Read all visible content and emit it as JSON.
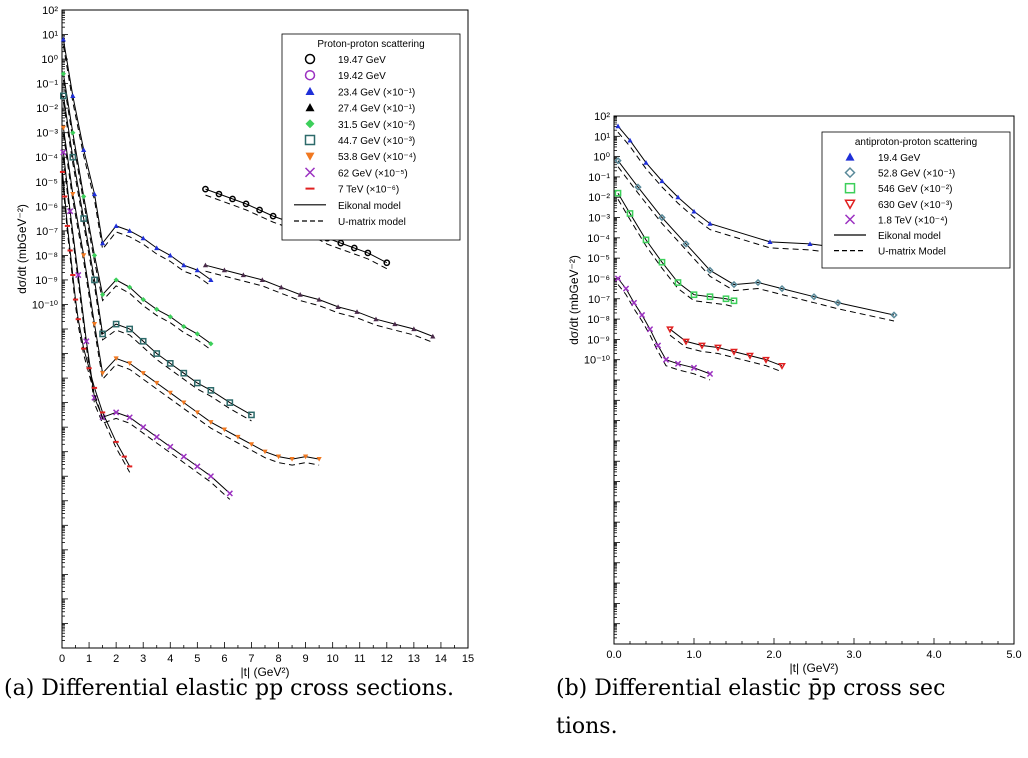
{
  "captions": {
    "left": "(a) Differential elastic pp cross sections.",
    "right_line1": "(b)  Differential  elastic  p̄p  cross  sec",
    "right_line2": "tions."
  },
  "chart_data": [
    {
      "type": "scatter",
      "panel": "a",
      "ylabel": "dσ/dt (mbGeV⁻²)",
      "xlabel": "|t| (GeV²)",
      "xlim": [
        0,
        15
      ],
      "ylim_exponents": [
        -24,
        2
      ],
      "x_ticks": [
        "0",
        "1",
        "2",
        "3",
        "4",
        "5",
        "6",
        "7",
        "8",
        "9",
        "10",
        "11",
        "12",
        "13",
        "14",
        "15"
      ],
      "y_tick_labels": [
        "10²",
        "10¹",
        "10⁰",
        "10⁻¹",
        "10⁻²",
        "10⁻³",
        "10⁻⁴",
        "10⁻⁵",
        "10⁻⁶",
        "10⁻⁷",
        "10⁻⁸",
        "10⁻⁹",
        "10⁻¹⁰"
      ],
      "legend": {
        "title": "Proton-proton scattering",
        "entries": [
          {
            "label": "19.47 GeV",
            "marker": "circle-open",
            "color": "#000000"
          },
          {
            "label": "19.42 GeV",
            "marker": "circle-open",
            "color": "#9b30c0"
          },
          {
            "label": "23.4 GeV (×10⁻¹)",
            "marker": "triangle",
            "color": "#1f2fd8"
          },
          {
            "label": "27.4 GeV (×10⁻¹)",
            "marker": "triangle",
            "color": "#000000"
          },
          {
            "label": "31.5 GeV (×10⁻²)",
            "marker": "diamond",
            "color": "#3ccf5a"
          },
          {
            "label": "44.7 GeV (×10⁻³)",
            "marker": "square-open",
            "color": "#2d6a6a"
          },
          {
            "label": "53.8 GeV (×10⁻⁴)",
            "marker": "triangle-down",
            "color": "#f07820"
          },
          {
            "label": "62 GeV (×10⁻⁵)",
            "marker": "cross",
            "color": "#9b30c0"
          },
          {
            "label": "7 TeV (×10⁻⁶)",
            "marker": "dash",
            "color": "#e02020"
          },
          {
            "label": "Eikonal model",
            "marker": "line-solid",
            "color": "#000000"
          },
          {
            "label": "U-matrix model",
            "marker": "line-dashed",
            "color": "#000000"
          }
        ]
      },
      "series": [
        {
          "name": "19.47 GeV",
          "color": "#000000",
          "x": [
            5.3,
            5.8,
            6.3,
            6.8,
            7.3,
            7.8,
            8.3,
            8.8,
            9.3,
            9.8,
            10.3,
            10.8,
            11.3,
            12.0
          ],
          "y_log": [
            -5.3,
            -5.5,
            -5.7,
            -5.9,
            -6.15,
            -6.4,
            -6.6,
            -6.8,
            -7.0,
            -7.3,
            -7.5,
            -7.7,
            -7.9,
            -8.3
          ]
        },
        {
          "name": "23.4 GeV",
          "color": "#1f2fd8",
          "x": [
            0.05,
            0.4,
            0.8,
            1.2,
            1.5,
            2.0,
            2.5,
            3.0,
            3.5,
            4.0,
            4.5,
            5.0,
            5.5
          ],
          "y_log": [
            0.8,
            -1.5,
            -3.7,
            -5.5,
            -7.5,
            -6.8,
            -7.0,
            -7.3,
            -7.7,
            -8.0,
            -8.4,
            -8.6,
            -9.0
          ]
        },
        {
          "name": "27.4 GeV",
          "color": "#4a2a4a",
          "x": [
            5.3,
            6.0,
            6.7,
            7.4,
            8.1,
            8.8,
            9.5,
            10.2,
            10.9,
            11.6,
            12.3,
            13.0,
            13.7
          ],
          "y_log": [
            -8.4,
            -8.6,
            -8.8,
            -9.0,
            -9.3,
            -9.6,
            -9.8,
            -10.1,
            -10.3,
            -10.6,
            -10.8,
            -11.0,
            -11.3
          ]
        },
        {
          "name": "31.5 GeV",
          "color": "#3ccf5a",
          "x": [
            0.05,
            0.4,
            0.8,
            1.2,
            1.5,
            2.0,
            2.5,
            3.0,
            3.5,
            4.0,
            4.5,
            5.0,
            5.5
          ],
          "y_log": [
            -0.6,
            -3.0,
            -5.6,
            -8.0,
            -9.6,
            -9.0,
            -9.3,
            -9.8,
            -10.2,
            -10.5,
            -10.9,
            -11.2,
            -11.6
          ]
        },
        {
          "name": "44.7 GeV",
          "color": "#2d6a6a",
          "x": [
            0.05,
            0.4,
            0.8,
            1.2,
            1.5,
            2.0,
            2.5,
            3.0,
            3.5,
            4.0,
            4.5,
            5.0,
            5.5,
            6.2,
            7.0
          ],
          "y_log": [
            -1.5,
            -4.0,
            -6.5,
            -9.0,
            -11.2,
            -10.8,
            -11.0,
            -11.5,
            -12.0,
            -12.4,
            -12.8,
            -13.2,
            -13.5,
            -14.0,
            -14.5
          ]
        },
        {
          "name": "53.8 GeV",
          "color": "#f07820",
          "x": [
            0.05,
            0.4,
            0.8,
            1.2,
            1.5,
            2.0,
            2.5,
            3.0,
            3.5,
            4.0,
            4.5,
            5.0,
            5.5,
            6.0,
            6.5,
            7.0,
            7.5,
            8.0,
            8.5,
            9.0,
            9.5
          ],
          "y_log": [
            -2.8,
            -5.5,
            -8.0,
            -10.8,
            -12.8,
            -12.2,
            -12.4,
            -12.8,
            -13.2,
            -13.6,
            -14.0,
            -14.4,
            -14.8,
            -15.1,
            -15.4,
            -15.7,
            -16.0,
            -16.2,
            -16.3,
            -16.2,
            -16.3
          ]
        },
        {
          "name": "62 GeV",
          "color": "#9b30c0",
          "x": [
            0.05,
            0.3,
            0.6,
            0.9,
            1.2,
            1.5,
            2.0,
            2.5,
            3.0,
            3.5,
            4.0,
            4.5,
            5.0,
            5.5,
            6.2
          ],
          "y_log": [
            -3.8,
            -6.2,
            -8.8,
            -11.5,
            -13.8,
            -14.6,
            -14.4,
            -14.6,
            -15.0,
            -15.4,
            -15.8,
            -16.2,
            -16.6,
            -17.0,
            -17.7
          ]
        },
        {
          "name": "7 TeV",
          "color": "#e02020",
          "x": [
            0.02,
            0.1,
            0.2,
            0.3,
            0.4,
            0.5,
            0.6,
            0.8,
            1.0,
            1.2,
            1.5,
            2.0,
            2.3,
            2.5
          ],
          "y_log": [
            -4.6,
            -5.6,
            -6.8,
            -7.8,
            -8.8,
            -9.8,
            -10.6,
            -11.8,
            -12.6,
            -13.4,
            -14.4,
            -15.6,
            -16.2,
            -16.6
          ]
        }
      ]
    },
    {
      "type": "scatter",
      "panel": "b",
      "ylabel": "dσ/dt (mbGeV⁻²)",
      "xlabel": "|t| (GeV²)",
      "xlim": [
        0,
        5
      ],
      "ylim_exponents": [
        -24,
        2
      ],
      "x_ticks": [
        "0.0",
        "1.0",
        "2.0",
        "3.0",
        "4.0",
        "5.0"
      ],
      "y_tick_labels": [
        "10²",
        "10¹",
        "10⁰",
        "10⁻¹",
        "10⁻²",
        "10⁻³",
        "10⁻⁴",
        "10⁻⁵",
        "10⁻⁶",
        "10⁻⁷",
        "10⁻⁸",
        "10⁻⁹",
        "10⁻¹⁰"
      ],
      "legend": {
        "title": "antiproton-proton scattering",
        "entries": [
          {
            "label": "19.4 GeV",
            "marker": "triangle",
            "color": "#1f2fd8"
          },
          {
            "label": "52.8 GeV (×10⁻¹)",
            "marker": "diamond-open",
            "color": "#5a8a9a"
          },
          {
            "label": "546 GeV (×10⁻²)",
            "marker": "square-open",
            "color": "#3ccf5a"
          },
          {
            "label": "630 GeV (×10⁻³)",
            "marker": "triangle-down-open",
            "color": "#e02020"
          },
          {
            "label": "1.8 TeV  (×10⁻⁴)",
            "marker": "cross",
            "color": "#9b30c0"
          },
          {
            "label": "Eikonal model",
            "marker": "line-solid",
            "color": "#000000"
          },
          {
            "label": "U-matrix Model",
            "marker": "line-dashed",
            "color": "#000000"
          }
        ]
      },
      "series": [
        {
          "name": "19.4 GeV",
          "color": "#1f2fd8",
          "x": [
            0.05,
            0.2,
            0.4,
            0.6,
            0.8,
            1.0,
            1.2,
            1.95,
            2.45,
            3.05,
            3.75
          ],
          "y_log": [
            1.5,
            0.8,
            -0.3,
            -1.2,
            -2.0,
            -2.7,
            -3.3,
            -4.2,
            -4.3,
            -4.6,
            -4.7
          ]
        },
        {
          "name": "52.8 GeV",
          "color": "#5a8a9a",
          "x": [
            0.05,
            0.3,
            0.6,
            0.9,
            1.2,
            1.5,
            1.8,
            2.1,
            2.5,
            2.8,
            3.5
          ],
          "y_log": [
            -0.2,
            -1.5,
            -3.0,
            -4.3,
            -5.6,
            -6.3,
            -6.2,
            -6.5,
            -6.9,
            -7.2,
            -7.8
          ]
        },
        {
          "name": "546 GeV",
          "color": "#3ccf5a",
          "x": [
            0.05,
            0.2,
            0.4,
            0.6,
            0.8,
            1.0,
            1.2,
            1.4,
            1.5
          ],
          "y_log": [
            -1.8,
            -2.8,
            -4.1,
            -5.2,
            -6.2,
            -6.8,
            -6.9,
            -7.0,
            -7.1
          ]
        },
        {
          "name": "630 GeV",
          "color": "#e02020",
          "x": [
            0.7,
            0.9,
            1.1,
            1.3,
            1.5,
            1.7,
            1.9,
            2.1
          ],
          "y_log": [
            -8.5,
            -9.1,
            -9.3,
            -9.4,
            -9.6,
            -9.8,
            -10.0,
            -10.3
          ]
        },
        {
          "name": "1.8 TeV",
          "color": "#9b30c0",
          "x": [
            0.05,
            0.15,
            0.25,
            0.35,
            0.45,
            0.55,
            0.65,
            0.8,
            1.0,
            1.2
          ],
          "y_log": [
            -6.0,
            -6.5,
            -7.2,
            -7.8,
            -8.5,
            -9.3,
            -10.0,
            -10.2,
            -10.4,
            -10.7
          ]
        }
      ]
    }
  ]
}
